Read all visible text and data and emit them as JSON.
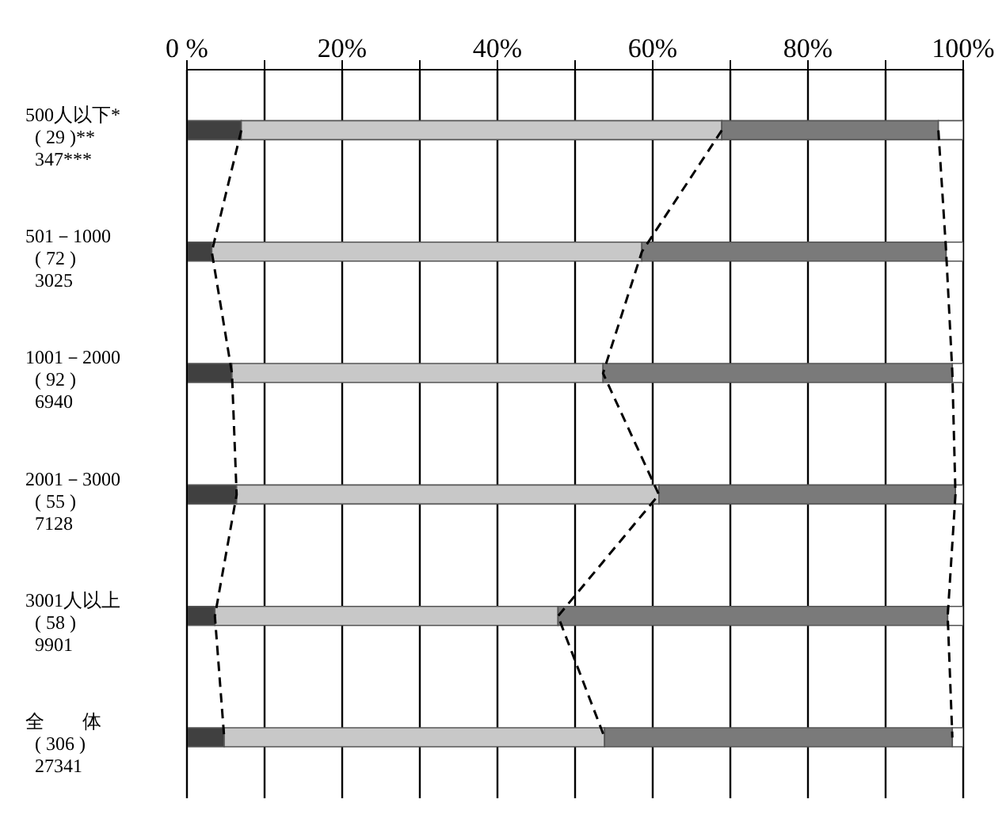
{
  "chart_data": {
    "type": "bar",
    "orientation": "horizontal",
    "stacked": true,
    "categories": [
      "500人以下*\n( 29 )**\n347***",
      "501－1000\n( 72 )\n3025",
      "1001－2000\n( 92 )\n6940",
      "2001－3000\n( 55 )\n7128",
      "3001人以上\n( 58 )\n9901",
      "全　　体\n( 306 )\n27341"
    ],
    "series": [
      {
        "color": "#404040",
        "values": [
          7,
          3.2,
          5.8,
          6.4,
          3.6,
          4.8
        ]
      },
      {
        "color": "#c8c8c8",
        "values": [
          61.9,
          55.4,
          47.8,
          54.4,
          44.2,
          49
        ]
      },
      {
        "color": "#7a7a7a",
        "values": [
          27.9,
          39.2,
          45,
          38.2,
          50.2,
          44.8
        ]
      },
      {
        "color": "#ffffff",
        "values": [
          3.2,
          2.2,
          1.4,
          1,
          2,
          1.4
        ]
      },
      {
        "type": "line",
        "color": "#000000",
        "line_style": "dashed",
        "values": [
          7,
          3.2,
          5.8,
          6.4,
          3.6,
          4.8
        ]
      },
      {
        "type": "line",
        "color": "#000000",
        "line_style": "dashed",
        "values": [
          68.9,
          58.6,
          53.6,
          60.8,
          47.8,
          53.8
        ]
      },
      {
        "type": "line",
        "color": "#000000",
        "line_style": "dashed",
        "values": [
          96.8,
          97.8,
          98.6,
          99,
          98,
          98.6
        ]
      }
    ],
    "xlim": [
      0,
      100
    ],
    "xticks": [
      {
        "value": 0,
        "label": "0 %"
      },
      {
        "value": 10,
        "label": null
      },
      {
        "value": 20,
        "label": "20%"
      },
      {
        "value": 30,
        "label": null
      },
      {
        "value": 40,
        "label": "40%"
      },
      {
        "value": 50,
        "label": null
      },
      {
        "value": 60,
        "label": "60%"
      },
      {
        "value": 70,
        "label": null
      },
      {
        "value": 80,
        "label": "80%"
      },
      {
        "value": 90,
        "label": null
      },
      {
        "value": 100,
        "label": "100%"
      }
    ],
    "grid": "x"
  }
}
